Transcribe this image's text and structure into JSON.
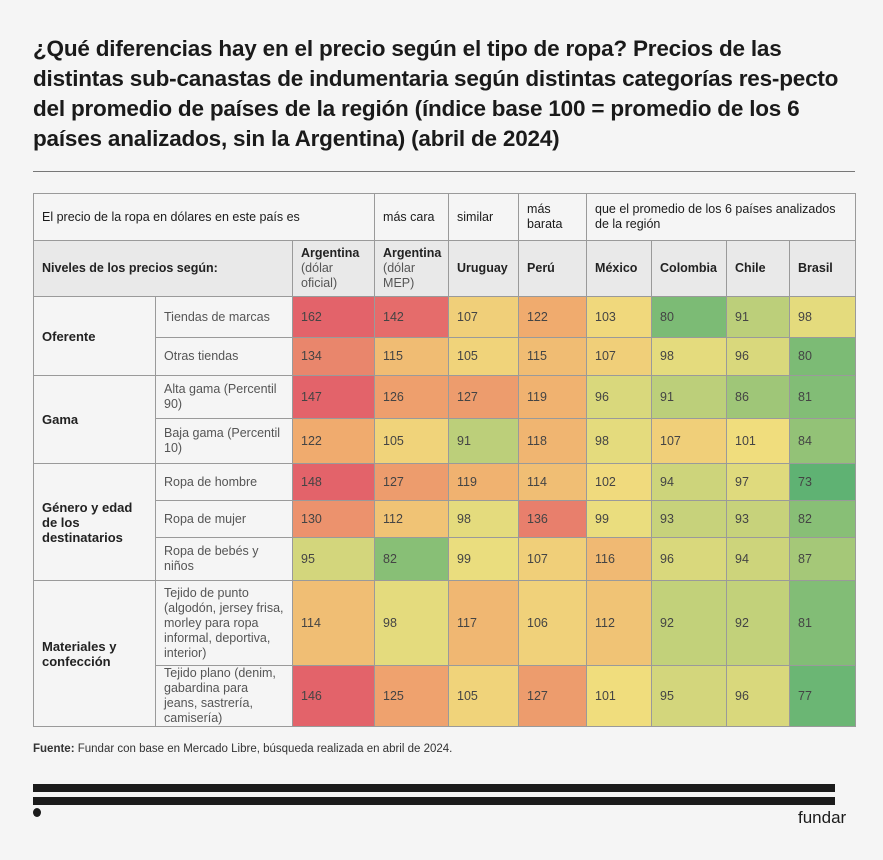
{
  "title": {
    "bold": "¿Qué diferencias hay en el precio según el tipo de ropa?",
    "rest": " Precios de las distintas sub-canastas de indumentaria según distintas categorías res-pecto del promedio de países de la región (índice base 100  = promedio de los 6 países analizados, sin la Argentina) (abril de 2024)"
  },
  "legend": {
    "intro": "El precio de la ropa en dólares en este país es",
    "mas_cara": "más cara",
    "similar": "similar",
    "mas_barata": "más barata",
    "outro": "que el promedio de los 6 países analizados de la región",
    "colors": {
      "mas_cara": "#e3636a",
      "similar": "#f0df7e",
      "mas_barata": "#5fb273"
    }
  },
  "header": {
    "row_label": "Niveles de los precios según:",
    "countries": [
      {
        "name": "Argentina",
        "note": "(dólar oficial)"
      },
      {
        "name": "Argentina",
        "note": "(dólar MEP)"
      },
      {
        "name": "Uruguay",
        "note": ""
      },
      {
        "name": "Perú",
        "note": ""
      },
      {
        "name": "México",
        "note": ""
      },
      {
        "name": "Colombia",
        "note": ""
      },
      {
        "name": "Chile",
        "note": ""
      },
      {
        "name": "Brasil",
        "note": ""
      }
    ]
  },
  "chart_data": {
    "type": "heatmap",
    "title": "¿Qué diferencias hay en el precio según el tipo de ropa?",
    "subtitle": "Precios de las distintas sub-canastas de indumentaria según distintas categorías respecto del promedio de países de la región (índice base 100 = promedio de los 6 países analizados, sin la Argentina) (abril de 2024)",
    "columns": [
      "Argentina (dólar oficial)",
      "Argentina (dólar MEP)",
      "Uruguay",
      "Perú",
      "México",
      "Colombia",
      "Chile",
      "Brasil"
    ],
    "color_scale": {
      "low": "#5fb273",
      "mid": "#f0df7e",
      "high": "#e3636a",
      "low_value": 75,
      "mid_value": 100,
      "high_value": 145
    },
    "groups": [
      {
        "category": "Oferente",
        "rows": [
          {
            "label": "Tiendas de marcas",
            "values": [
              162,
              142,
              107,
              122,
              103,
              80,
              91,
              98
            ]
          },
          {
            "label": "Otras tiendas",
            "values": [
              134,
              115,
              105,
              115,
              107,
              98,
              96,
              80
            ]
          }
        ]
      },
      {
        "category": "Gama",
        "rows": [
          {
            "label": "Alta gama (Percentil 90)",
            "values": [
              147,
              126,
              127,
              119,
              96,
              91,
              86,
              81
            ]
          },
          {
            "label": "Baja gama (Percentil 10)",
            "values": [
              122,
              105,
              91,
              118,
              98,
              107,
              101,
              84
            ]
          }
        ]
      },
      {
        "category": "Género y edad de los destinatarios",
        "rows": [
          {
            "label": "Ropa de hombre",
            "values": [
              148,
              127,
              119,
              114,
              102,
              94,
              97,
              73
            ]
          },
          {
            "label": "Ropa de mujer",
            "values": [
              130,
              112,
              98,
              136,
              99,
              93,
              93,
              82
            ]
          },
          {
            "label": "Ropa de bebés y niños",
            "values": [
              95,
              82,
              99,
              107,
              116,
              96,
              94,
              87
            ]
          }
        ]
      },
      {
        "category": "Materiales y confección",
        "rows": [
          {
            "label": "Tejido de punto (algodón, jersey frisa, morley para ropa informal, deportiva, interior)",
            "values": [
              114,
              98,
              117,
              106,
              112,
              92,
              92,
              81
            ]
          },
          {
            "label": "Tejido plano (denim, gabardina para jeans, sastrería, camisería)",
            "values": [
              146,
              125,
              105,
              127,
              101,
              95,
              96,
              77
            ]
          }
        ]
      }
    ]
  },
  "footer": {
    "source_label": "Fuente:",
    "source_text": " Fundar con base en Mercado Libre, búsqueda realizada en abril de 2024.",
    "logo": "fundar"
  }
}
